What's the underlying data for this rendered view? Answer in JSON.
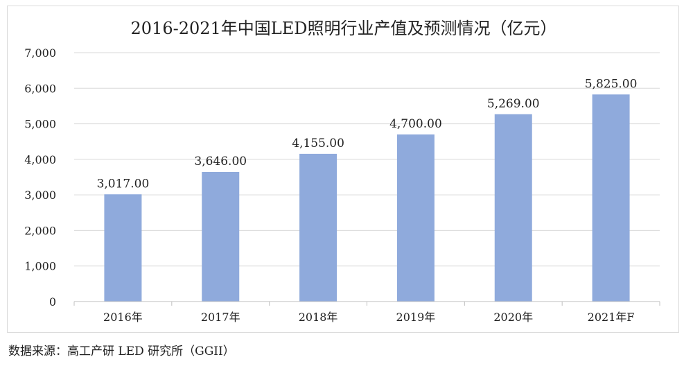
{
  "chart_data": {
    "type": "bar",
    "title": "2016-2021年中国LED照明行业产值及预测情况（亿元）",
    "categories": [
      "2016年",
      "2017年",
      "2018年",
      "2019年",
      "2020年",
      "2021年F"
    ],
    "values": [
      3017,
      3646,
      4155,
      4700,
      5269,
      5825
    ],
    "data_labels": [
      "3,017.00",
      "3,646.00",
      "4,155.00",
      "4,700.00",
      "5,269.00",
      "5,825.00"
    ],
    "y_ticks": [
      0,
      1000,
      2000,
      3000,
      4000,
      5000,
      6000,
      7000
    ],
    "y_tick_labels": [
      "0",
      "1,000",
      "2,000",
      "3,000",
      "4,000",
      "5,000",
      "6,000",
      "7,000"
    ],
    "ylim": [
      0,
      7000
    ],
    "xlabel": "",
    "ylabel": "",
    "grid": true,
    "legend": "none",
    "colors": {
      "bar": "#8faadc",
      "grid": "#d9d9d9",
      "axis": "#bfbfbf"
    }
  },
  "source": "数据来源：高工产研 LED 研究所（GGII）"
}
